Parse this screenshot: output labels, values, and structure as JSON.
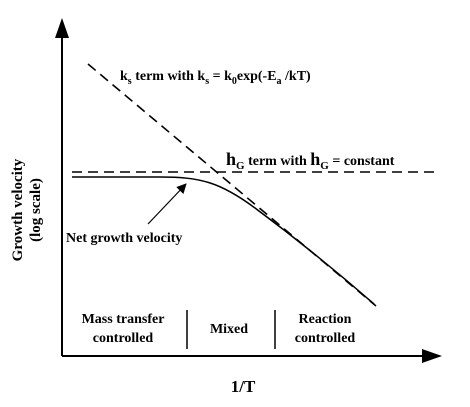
{
  "axes": {
    "x_label": "1/T",
    "y_label_line1": "Growth velocity",
    "y_label_line2": "(log scale)"
  },
  "curves": {
    "ks": {
      "prefix": "k",
      "sub": "s",
      "mid": " term with k",
      "sub2": "s",
      "eq": " = k",
      "sub3": "0",
      "tail": "exp(-E",
      "sub4": "a",
      "end": " /kT)"
    },
    "hg": {
      "prefix": "h",
      "sub": "G",
      "mid": " term with ",
      "prefix2": "h",
      "sub2": "G",
      "end": " = constant"
    },
    "net": {
      "label": "Net growth velocity"
    }
  },
  "regions": {
    "mass_transfer_line1": "Mass transfer",
    "mass_transfer_line2": "controlled",
    "mixed": "Mixed",
    "reaction_line1": "Reaction",
    "reaction_line2": "controlled"
  }
}
